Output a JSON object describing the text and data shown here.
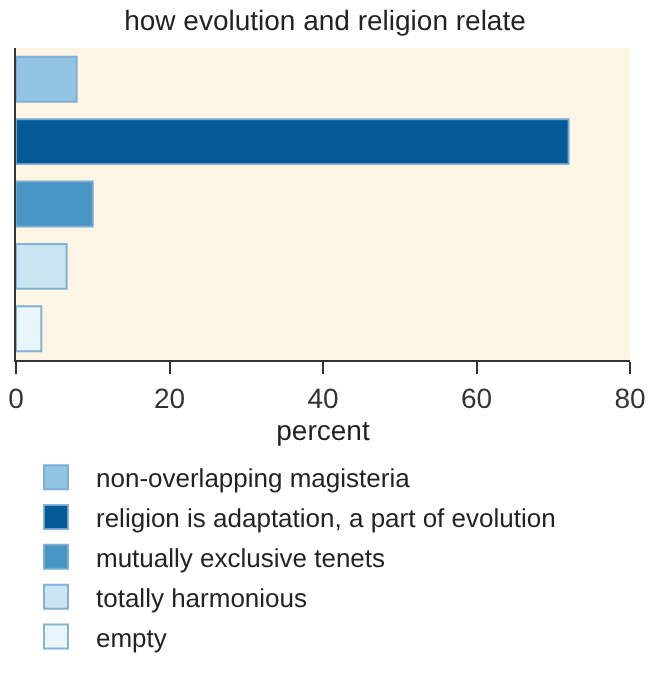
{
  "chart_data": {
    "type": "bar",
    "orientation": "horizontal",
    "title": "how evolution and religion relate",
    "xlabel": "percent",
    "categories": [
      null,
      null,
      null,
      null,
      null
    ],
    "series": [
      {
        "name": "non-overlapping magisteria",
        "color": "#92c5e3",
        "values": [
          7.9,
          null,
          null,
          null,
          null
        ]
      },
      {
        "name": "religion is adaptation, a part of evolution",
        "color": "#035a96",
        "values": [
          null,
          72,
          null,
          null,
          null
        ]
      },
      {
        "name": "mutually exclusive tenets",
        "color": "#4896c6",
        "values": [
          null,
          null,
          10,
          null,
          null
        ]
      },
      {
        "name": "totally harmonious",
        "color": "#c9e5f2",
        "values": [
          null,
          null,
          null,
          6.6,
          null
        ]
      },
      {
        "name": "empty",
        "color": "#eaf5fb",
        "values": [
          null,
          null,
          null,
          null,
          3.3
        ]
      }
    ],
    "xlim": [
      0,
      80
    ],
    "xticks": [
      0,
      20,
      40,
      60,
      80
    ],
    "grid": false,
    "legend": "bottom",
    "tick_labels": "x"
  }
}
